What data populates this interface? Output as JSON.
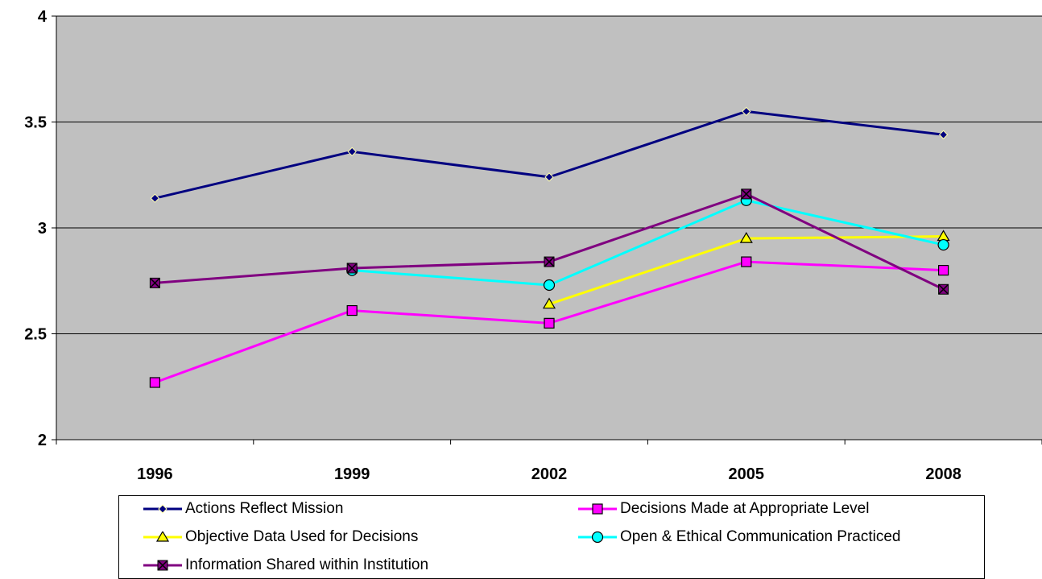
{
  "chart_data": {
    "type": "line",
    "categories": [
      "1996",
      "1999",
      "2002",
      "2005",
      "2008"
    ],
    "ylim": [
      2,
      4
    ],
    "yticks": [
      "2",
      "2.5",
      "3",
      "3.5",
      "4"
    ],
    "grid": true,
    "legend_position": "bottom",
    "series": [
      {
        "name": "Actions Reflect Mission",
        "values": [
          3.14,
          3.36,
          3.24,
          3.55,
          3.44
        ],
        "color": "#000080",
        "marker": "diamond",
        "marker_fill": "#000080"
      },
      {
        "name": "Decisions Made at Appropriate Level",
        "values": [
          2.27,
          2.61,
          2.55,
          2.84,
          2.8
        ],
        "color": "#FF00FF",
        "marker": "square",
        "marker_fill": "#FF00FF"
      },
      {
        "name": "Objective Data Used for Decisions",
        "values": [
          null,
          null,
          2.64,
          2.95,
          2.96
        ],
        "color": "#FFFF00",
        "marker": "triangle",
        "marker_fill": "#FFFF00"
      },
      {
        "name": "Open & Ethical Communication Practiced",
        "values": [
          null,
          2.8,
          2.73,
          3.13,
          2.92
        ],
        "color": "#00FFFF",
        "marker": "circle",
        "marker_fill": "#00FFFF"
      },
      {
        "name": "Information Shared within Institution",
        "values": [
          2.74,
          2.81,
          2.84,
          3.16,
          2.71
        ],
        "color": "#800080",
        "marker": "x-square",
        "marker_fill": "#800080"
      }
    ]
  }
}
